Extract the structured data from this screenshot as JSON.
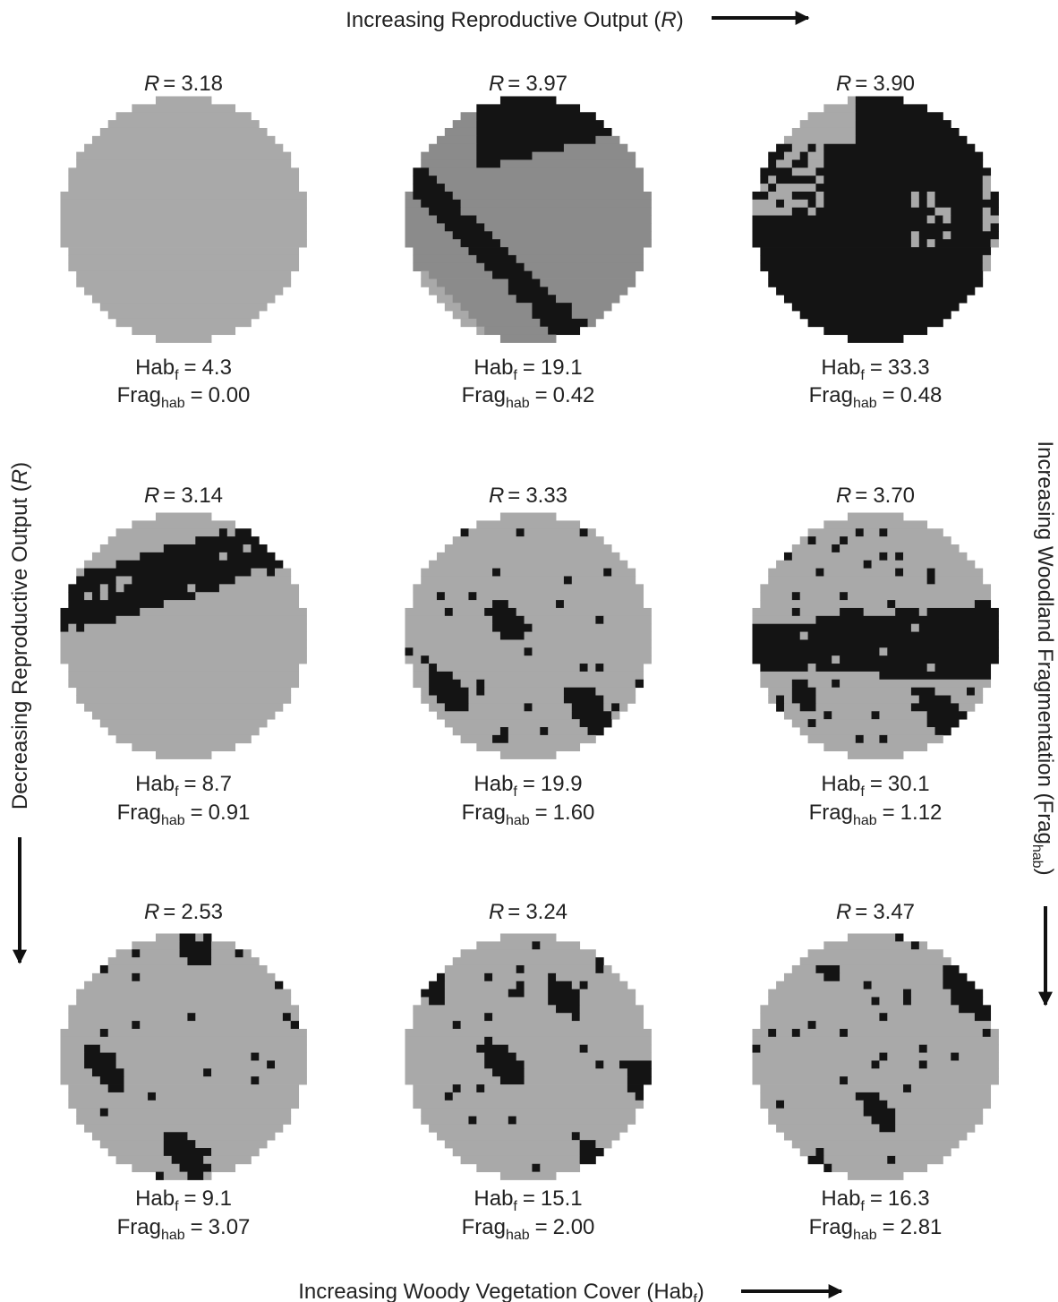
{
  "axes": {
    "top": {
      "text": "Increasing Reproductive Output (",
      "symbol": "R",
      "close": ")"
    },
    "bottom": {
      "text": "Increasing Woody Vegetation Cover (Hab",
      "sub": "f",
      "close": ")"
    },
    "left": {
      "text": "Decreasing Reproductive Output (",
      "symbol": "R",
      "close": ")"
    },
    "right": {
      "text": "Increasing Woodland Fragmentation (Frag",
      "sub": "hab",
      "close": ")"
    }
  },
  "labels": {
    "r": "R",
    "equals": "=",
    "hab": "Hab",
    "hab_sub": "f",
    "frag": "Frag",
    "frag_sub": "hab"
  },
  "panels": [
    {
      "r": "3.18",
      "hab": "4.3",
      "frag": "0.00"
    },
    {
      "r": "3.97",
      "hab": "19.1",
      "frag": "0.42"
    },
    {
      "r": "3.90",
      "hab": "33.3",
      "frag": "0.48"
    },
    {
      "r": "3.14",
      "hab": "8.7",
      "frag": "0.91"
    },
    {
      "r": "3.33",
      "hab": "19.9",
      "frag": "1.60"
    },
    {
      "r": "3.70",
      "hab": "30.1",
      "frag": "1.12"
    },
    {
      "r": "2.53",
      "hab": "9.1",
      "frag": "3.07"
    },
    {
      "r": "3.24",
      "hab": "15.1",
      "frag": "2.00"
    },
    {
      "r": "3.47",
      "hab": "16.3",
      "frag": "2.81"
    }
  ]
}
